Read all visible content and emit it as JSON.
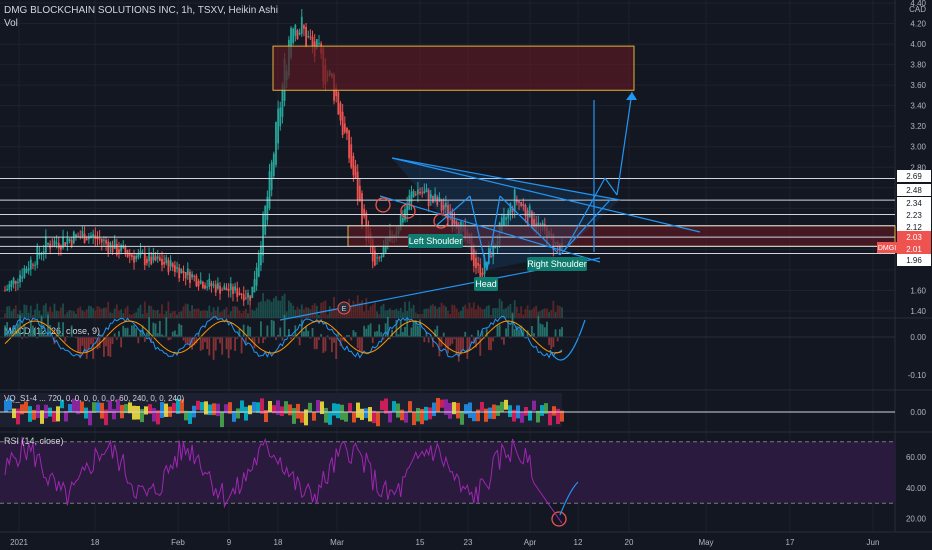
{
  "header": {
    "symbol_line": "DMG BLOCKCHAIN SOLUTIONS INC, 1h, TSXV, Heikin Ashi",
    "vol_label": "Vol"
  },
  "price_axis": {
    "currency": "CAD",
    "ticks": [
      "4.40",
      "4.20",
      "4.00",
      "3.80",
      "3.60",
      "3.40",
      "3.20",
      "3.00",
      "2.80",
      "1.60",
      "1.40"
    ],
    "level_labels": [
      "2.69",
      "2.48",
      "2.34",
      "2.23",
      "2.12",
      "2.03",
      "2.01",
      "1.96"
    ],
    "symbol_badge": "DMGI"
  },
  "time_axis": [
    "2021",
    "18",
    "Feb",
    "9",
    "18",
    "Mar",
    "15",
    "23",
    "Apr",
    "12",
    "20",
    "May",
    "17",
    "Jun"
  ],
  "panes": {
    "macd": {
      "label": "MACD (12, 26, close, 9)",
      "ticks": [
        "0.00",
        "-0.10"
      ]
    },
    "custom": {
      "label": "VQ_S1-4 ... 720, 0, 0, 0, 0, 0, 0, 60, 240, 0, 0, 240)",
      "ticks": [
        "0.00"
      ]
    },
    "rsi": {
      "label": "RSI (14, close)",
      "ticks": [
        "60.00",
        "40.00",
        "20.00"
      ]
    }
  },
  "annotations": {
    "left_shoulder": "Left Shoulder",
    "head": "Head",
    "right_shoulder": "Right Shoulder",
    "earnings_marker": "E"
  },
  "colors": {
    "background": "#131722",
    "up": "#26a69a",
    "down": "#ef5350",
    "trendline": "#2196f3",
    "zone_fill": "#5a1a22",
    "zone_border": "#e0b33a",
    "rsi_band": "#2a1a3d",
    "rsi_line": "#9c27b0",
    "label_green": "#0f7c6f"
  },
  "chart_data": {
    "type": "line",
    "title": "DMG BLOCKCHAIN SOLUTIONS INC, 1h, TSXV, Heikin Ashi",
    "y_range": [
      1.3,
      4.45
    ],
    "x": [
      "2021-01-04",
      "2021-01-11",
      "2021-01-18",
      "2021-01-25",
      "2021-02-01",
      "2021-02-08",
      "2021-02-15",
      "2021-02-18",
      "2021-02-22",
      "2021-03-01",
      "2021-03-08",
      "2021-03-15",
      "2021-03-22",
      "2021-03-26",
      "2021-04-01",
      "2021-04-06",
      "2021-04-09"
    ],
    "series": [
      {
        "values": [
          1.6,
          2.05,
          2.15,
          1.95,
          1.85,
          1.65,
          1.55,
          2.6,
          4.3,
          3.6,
          1.8,
          2.6,
          2.3,
          1.75,
          2.5,
          2.15,
          1.98
        ]
      }
    ],
    "horizontal_levels": [
      2.69,
      2.48,
      2.34,
      2.23,
      2.12,
      2.03,
      1.96
    ],
    "zones": [
      {
        "from": 3.55,
        "to": 3.98
      },
      {
        "from": 2.03,
        "to": 2.23
      }
    ],
    "pattern": [
      "Left Shoulder",
      "Head",
      "Right Shoulder"
    ],
    "rsi_levels": [
      70,
      30
    ],
    "grid": true
  }
}
